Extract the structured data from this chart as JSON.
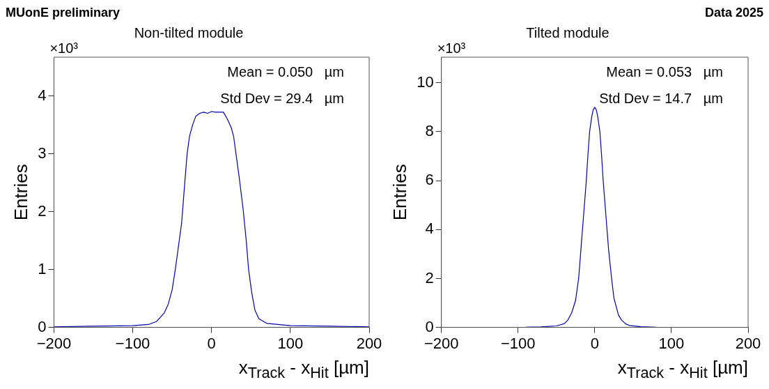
{
  "chart_data": [
    {
      "type": "line",
      "title": "Non-tilted module",
      "xlabel": "x$_{Track}$ - x$_{Hit}$ [µm]",
      "ylabel": "Entries",
      "annotations": [
        "MUonE preliminary",
        "×10³",
        "Mean = 0.050   µm",
        "Std Dev = 29.4   µm"
      ],
      "x": [
        -200,
        -150,
        -100,
        -80,
        -70,
        -60,
        -55,
        -50,
        -46,
        -40,
        -38,
        -34,
        -31,
        -28,
        -24,
        -20,
        -15,
        -10,
        -5,
        0,
        5,
        10,
        15,
        20,
        25,
        28,
        31,
        35,
        40,
        44,
        47,
        51,
        55,
        60,
        70,
        100,
        150,
        200
      ],
      "series": [
        {
          "color": "#0000aa",
          "values": [
            0.01,
            0.02,
            0.03,
            0.05,
            0.1,
            0.25,
            0.4,
            0.65,
            1.0,
            1.6,
            1.8,
            2.5,
            3.0,
            3.3,
            3.5,
            3.65,
            3.7,
            3.72,
            3.7,
            3.73,
            3.72,
            3.72,
            3.72,
            3.6,
            3.45,
            3.3,
            3.0,
            2.6,
            2.05,
            1.5,
            1.0,
            0.6,
            0.3,
            0.15,
            0.07,
            0.03,
            0.02,
            0.01
          ]
        }
      ],
      "xlim": [
        -200,
        200
      ],
      "xticks": [
        -200,
        -100,
        0,
        100,
        200
      ],
      "ylim": [
        0,
        4.67
      ],
      "yticks": [
        0,
        1,
        2,
        3,
        4
      ],
      "grid": false,
      "legend": false
    },
    {
      "type": "line",
      "title": "Tilted module",
      "xlabel": "x$_{Track}$ - x$_{Hit}$ [µm]",
      "ylabel": "Entries",
      "annotations": [
        "Data 2025",
        "×10³",
        "Mean = 0.053   µm",
        "Std Dev = 14.7   µm"
      ],
      "x": [
        -90,
        -70,
        -50,
        -40,
        -35,
        -30,
        -25,
        -21,
        -18,
        -16,
        -13,
        -11,
        -9,
        -6.7,
        -4,
        -2,
        0,
        2,
        4,
        6.7,
        9,
        11,
        13,
        16,
        18,
        22,
        25,
        31,
        35,
        40,
        45,
        60,
        80
      ],
      "series": [
        {
          "color": "#0000aa",
          "values": [
            0.01,
            0.02,
            0.06,
            0.15,
            0.3,
            0.6,
            1.1,
            2.0,
            3.2,
            4.0,
            5.2,
            6.0,
            7.0,
            8.0,
            8.6,
            8.9,
            9.0,
            8.9,
            8.6,
            8.0,
            7.0,
            6.0,
            5.2,
            4.0,
            3.2,
            2.0,
            1.2,
            0.5,
            0.3,
            0.15,
            0.08,
            0.03,
            0.01
          ]
        }
      ],
      "xlim": [
        -200,
        200
      ],
      "xticks": [
        -200,
        -100,
        0,
        100,
        200
      ],
      "ylim": [
        0,
        11.05
      ],
      "yticks": [
        0,
        2,
        4,
        6,
        8,
        10
      ],
      "grid": false,
      "legend": false
    }
  ]
}
